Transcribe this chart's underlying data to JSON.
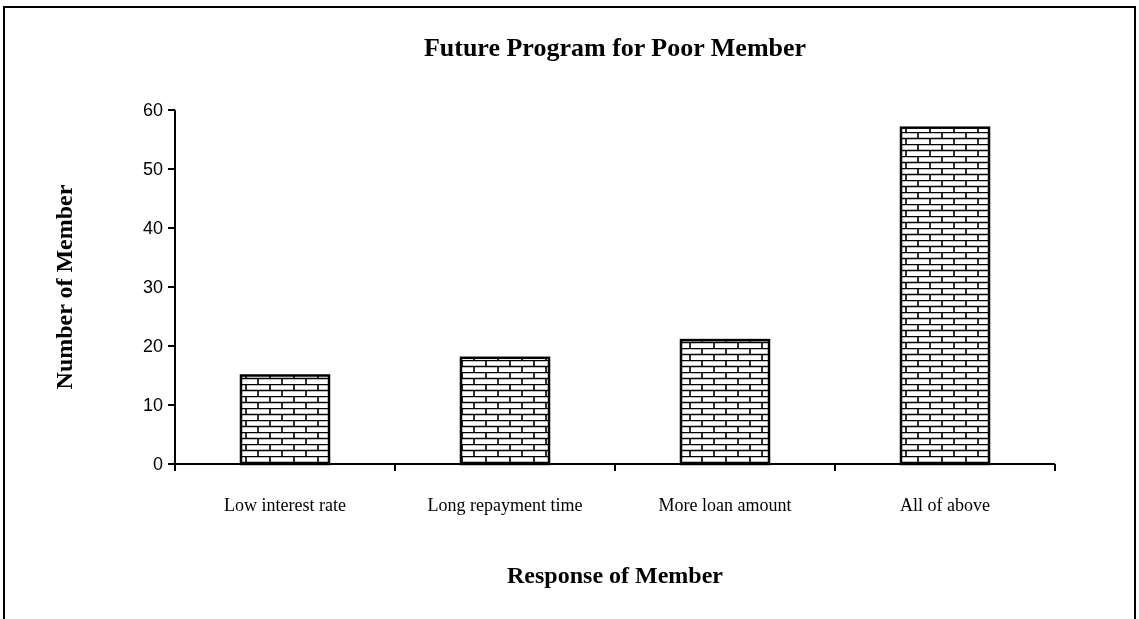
{
  "chart_data": {
    "type": "bar",
    "title": "Future Program for Poor Member",
    "xlabel": "Response of Member",
    "ylabel": "Number of Member",
    "categories": [
      "Low interest rate",
      "Long repayment time",
      "More loan amount",
      "All of above"
    ],
    "values": [
      15,
      18,
      21,
      57
    ],
    "color": "#000000",
    "ylim": [
      0,
      60
    ],
    "yticks": [
      0,
      10,
      20,
      30,
      40,
      50,
      60
    ]
  }
}
